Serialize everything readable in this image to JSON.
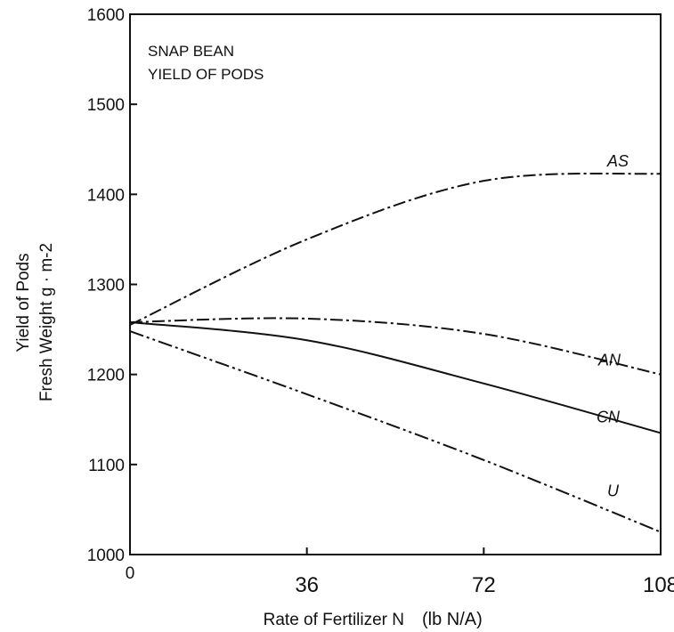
{
  "chart_data": {
    "type": "line",
    "title": "SNAP BEAN",
    "subtitle": "YIELD OF PODS",
    "xlabel": "Rate of Fertilizer N",
    "xlabel_unit": "(lb N/A)",
    "ylabel_line1": "Yield of Pods",
    "ylabel_line2": "Fresh Weight g · m-2",
    "xlim": [
      0,
      108
    ],
    "ylim": [
      1000,
      1600
    ],
    "x_ticks": [
      0,
      36,
      72,
      108
    ],
    "x_tick_labels": [
      "0",
      "36",
      "72",
      "108"
    ],
    "y_ticks": [
      1000,
      1100,
      1200,
      1300,
      1400,
      1500,
      1600
    ],
    "y_tick_labels": [
      "1000",
      "1100",
      "1200",
      "1300",
      "1400",
      "1500",
      "1600"
    ],
    "grid": false,
    "series": [
      {
        "name": "AS",
        "style": "dash-dot",
        "x": [
          0,
          36,
          72,
          108
        ],
        "y": [
          1255,
          1350,
          1415,
          1423
        ]
      },
      {
        "name": "AN",
        "style": "dash-dot",
        "x": [
          0,
          36,
          72,
          108
        ],
        "y": [
          1258,
          1262,
          1245,
          1200
        ]
      },
      {
        "name": "CN",
        "style": "solid",
        "x": [
          0,
          36,
          72,
          108
        ],
        "y": [
          1258,
          1238,
          1190,
          1135
        ]
      },
      {
        "name": "U",
        "style": "dash-dot-dot",
        "x": [
          0,
          36,
          72,
          108
        ],
        "y": [
          1248,
          1178,
          1105,
          1025
        ]
      }
    ]
  }
}
